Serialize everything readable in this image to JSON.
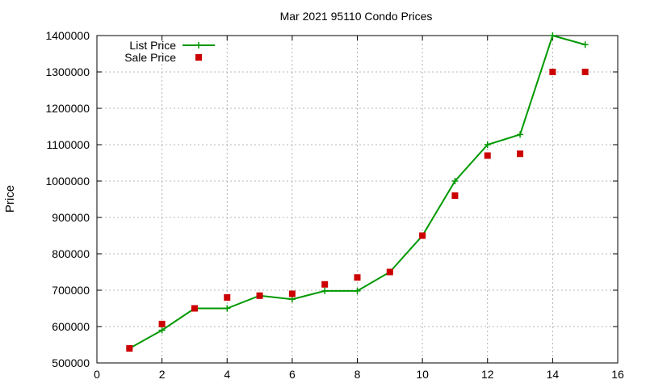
{
  "chart_data": {
    "type": "line",
    "title": "Mar 2021 95110 Condo Prices",
    "xlabel": "",
    "ylabel": "Price",
    "xlim": [
      0,
      16
    ],
    "ylim": [
      500000,
      1400000
    ],
    "xticks": [
      0,
      2,
      4,
      6,
      8,
      10,
      12,
      14,
      16
    ],
    "yticks": [
      500000,
      600000,
      700000,
      800000,
      900000,
      1000000,
      1100000,
      1200000,
      1300000,
      1400000
    ],
    "xtick_labels": [
      "0",
      "2",
      "4",
      "6",
      "8",
      "10",
      "12",
      "14",
      "16"
    ],
    "ytick_labels": [
      "500000",
      "600000",
      "700000",
      "800000",
      "900000",
      "1000000",
      "1100000",
      "1200000",
      "1300000",
      "1400000"
    ],
    "grid": true,
    "legend_position": "top-left",
    "series": [
      {
        "name": "List Price",
        "style": "lines+points",
        "marker": "plus",
        "color": "#009900",
        "x": [
          1,
          2,
          3,
          4,
          5,
          6,
          7,
          8,
          9,
          10,
          11,
          12,
          13,
          14,
          15
        ],
        "y": [
          540000,
          590000,
          650000,
          650000,
          685000,
          675000,
          698000,
          698000,
          750000,
          850000,
          1000000,
          1100000,
          1128000,
          1400000,
          1375000
        ]
      },
      {
        "name": "Sale Price",
        "style": "points",
        "marker": "square",
        "color": "#cc0000",
        "x": [
          1,
          2,
          3,
          4,
          5,
          6,
          7,
          8,
          9,
          10,
          11,
          12,
          13,
          14,
          15
        ],
        "y": [
          540000,
          607000,
          650000,
          680000,
          685000,
          690000,
          716000,
          735000,
          750000,
          850000,
          960000,
          1070000,
          1075000,
          1300000,
          1300000
        ]
      }
    ]
  }
}
